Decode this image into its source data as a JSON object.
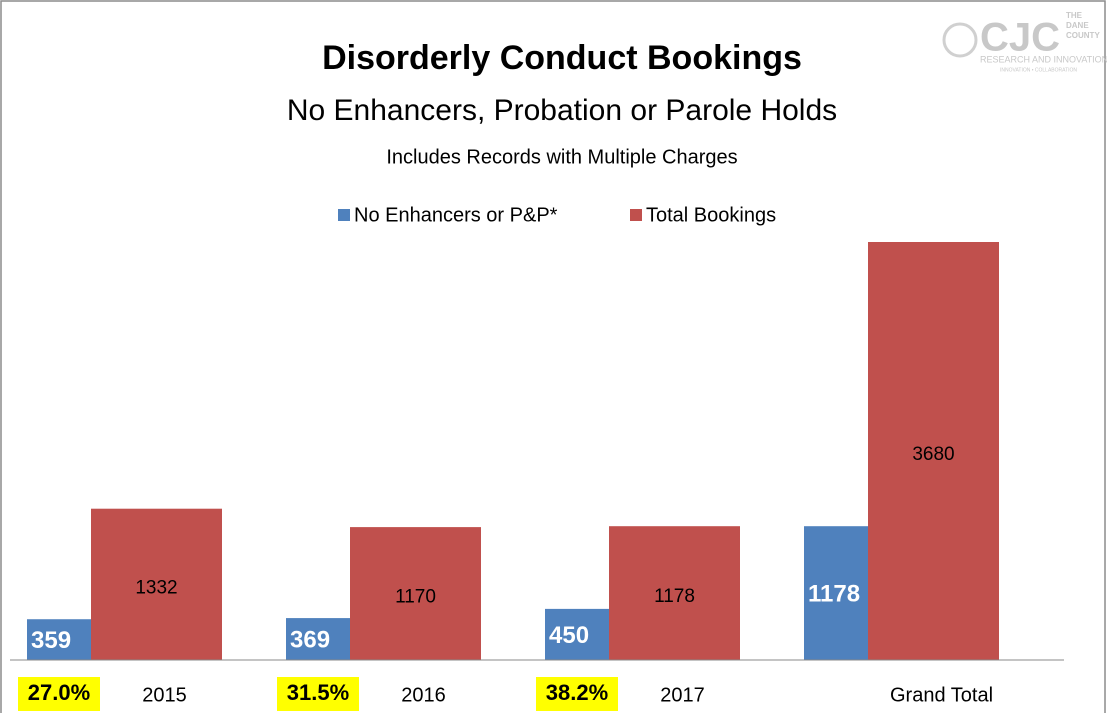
{
  "chart_data": {
    "type": "bar",
    "title": "Disorderly Conduct Bookings",
    "subtitle": "No Enhancers, Probation or Parole Holds",
    "note": "Includes Records with Multiple Charges",
    "categories": [
      "2015",
      "2016",
      "2017",
      "Grand Total"
    ],
    "series": [
      {
        "name": "No Enhancers or P&P*",
        "color": "#4f81bd",
        "values": [
          359,
          369,
          450,
          1178
        ]
      },
      {
        "name": "Total Bookings",
        "color": "#c0504d",
        "values": [
          1332,
          1170,
          1178,
          3680
        ]
      }
    ],
    "percent_labels": [
      "27.0%",
      "31.5%",
      "38.2%"
    ],
    "legend": "top",
    "grid": false
  },
  "logo": {
    "name": "CJC",
    "top": "THE",
    "middle": "DANE",
    "bottom": "COUNTY",
    "team": "RESEARCH AND INNOVATION TEAM",
    "tagline": "INNOVATION • COLLABORATION"
  }
}
